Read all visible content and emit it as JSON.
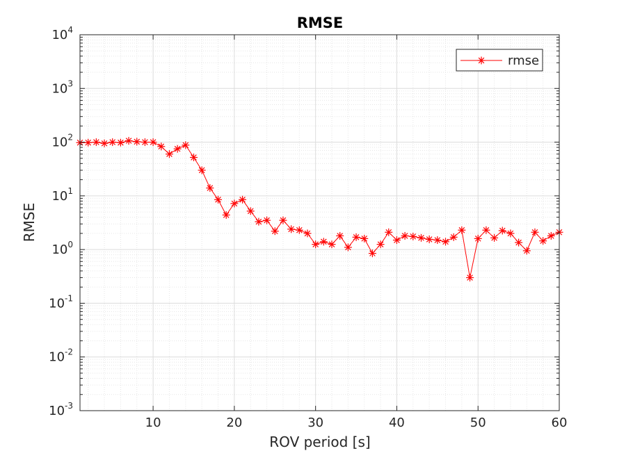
{
  "chart_data": {
    "type": "line",
    "title": "RMSE",
    "xlabel": "ROV period [s]",
    "ylabel": "RMSE",
    "xlim": [
      1,
      60
    ],
    "ylim": [
      0.001,
      10000
    ],
    "yscale": "log",
    "grid": "on (major and minor)",
    "legend_position": "top-right",
    "xticks": [
      10,
      20,
      30,
      40,
      50,
      60
    ],
    "xtick_labels": [
      "10",
      "20",
      "30",
      "40",
      "50",
      "60"
    ],
    "yticks": [
      0.001,
      0.01,
      0.1,
      1,
      10,
      100,
      1000,
      10000
    ],
    "ytick_labels": [
      {
        "base": "10",
        "exp": "-3"
      },
      {
        "base": "10",
        "exp": "-2"
      },
      {
        "base": "10",
        "exp": "-1"
      },
      {
        "base": "10",
        "exp": "0"
      },
      {
        "base": "10",
        "exp": "1"
      },
      {
        "base": "10",
        "exp": "2"
      },
      {
        "base": "10",
        "exp": "3"
      },
      {
        "base": "10",
        "exp": "4"
      }
    ],
    "series": [
      {
        "name": "rmse",
        "color": "#ff0000",
        "marker": "asterisk",
        "x": [
          1,
          2,
          3,
          4,
          5,
          6,
          7,
          8,
          9,
          10,
          11,
          12,
          13,
          14,
          15,
          16,
          17,
          18,
          19,
          20,
          21,
          22,
          23,
          24,
          25,
          26,
          27,
          28,
          29,
          30,
          31,
          32,
          33,
          34,
          35,
          36,
          37,
          38,
          39,
          40,
          41,
          42,
          43,
          44,
          45,
          46,
          47,
          48,
          49,
          50,
          51,
          52,
          53,
          54,
          55,
          56,
          57,
          58,
          59,
          60
        ],
        "y": [
          98,
          98,
          100,
          95,
          100,
          98,
          106,
          102,
          100,
          100,
          83,
          60,
          75,
          88,
          52,
          30,
          14,
          8.5,
          4.4,
          7.2,
          8.5,
          5.2,
          3.3,
          3.5,
          2.2,
          3.5,
          2.4,
          2.3,
          2.0,
          1.25,
          1.4,
          1.25,
          1.8,
          1.1,
          1.7,
          1.6,
          0.85,
          1.25,
          2.1,
          1.5,
          1.8,
          1.75,
          1.65,
          1.55,
          1.5,
          1.4,
          1.7,
          2.3,
          0.3,
          1.6,
          2.3,
          1.65,
          2.25,
          2.0,
          1.35,
          0.95,
          2.1,
          1.45,
          1.8,
          2.1
        ]
      }
    ]
  }
}
